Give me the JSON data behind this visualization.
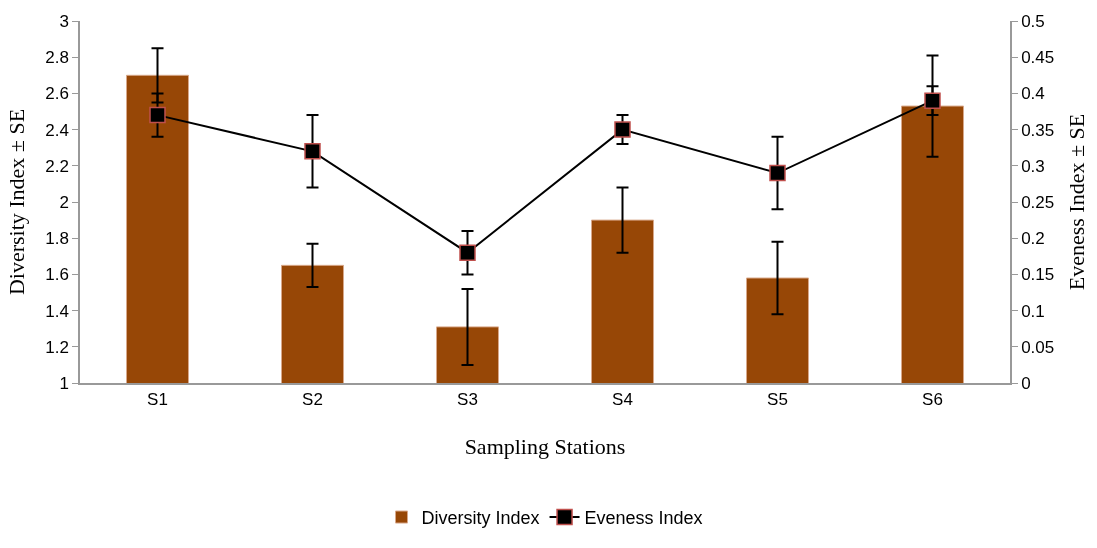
{
  "chart_data": {
    "type": "bar",
    "xlabel": "Sampling Stations",
    "ylabel": "Diversity Index ± SE",
    "y2label": "Eveness Index ± SE",
    "categories": [
      "S1",
      "S2",
      "S3",
      "S4",
      "S5",
      "S6"
    ],
    "series": [
      {
        "name": "Diversity Index",
        "color": "#974706",
        "values": [
          2.7,
          1.65,
          1.31,
          1.9,
          1.58,
          2.53
        ],
        "errors": [
          0.15,
          0.12,
          0.21,
          0.18,
          0.2,
          0.28
        ]
      },
      {
        "name": "Eveness Index",
        "type": "line",
        "axis": "y2",
        "color": "#000000",
        "marker": "square",
        "line_style": "solid",
        "values": [
          0.37,
          0.32,
          0.18,
          0.35,
          0.29,
          0.39
        ],
        "errors": [
          0.03,
          0.05,
          0.03,
          0.02,
          0.05,
          0.02
        ]
      }
    ],
    "ylim": [
      1,
      3
    ],
    "yticks": [
      1,
      1.2,
      1.4,
      1.6,
      1.8,
      2,
      2.2,
      2.4,
      2.6,
      2.8,
      3
    ],
    "y2lim": [
      0,
      0.5
    ],
    "y2ticks": [
      0,
      0.05,
      0.1,
      0.15,
      0.2,
      0.25,
      0.3,
      0.35,
      0.4,
      0.45,
      0.5
    ],
    "legend": "bottom"
  }
}
